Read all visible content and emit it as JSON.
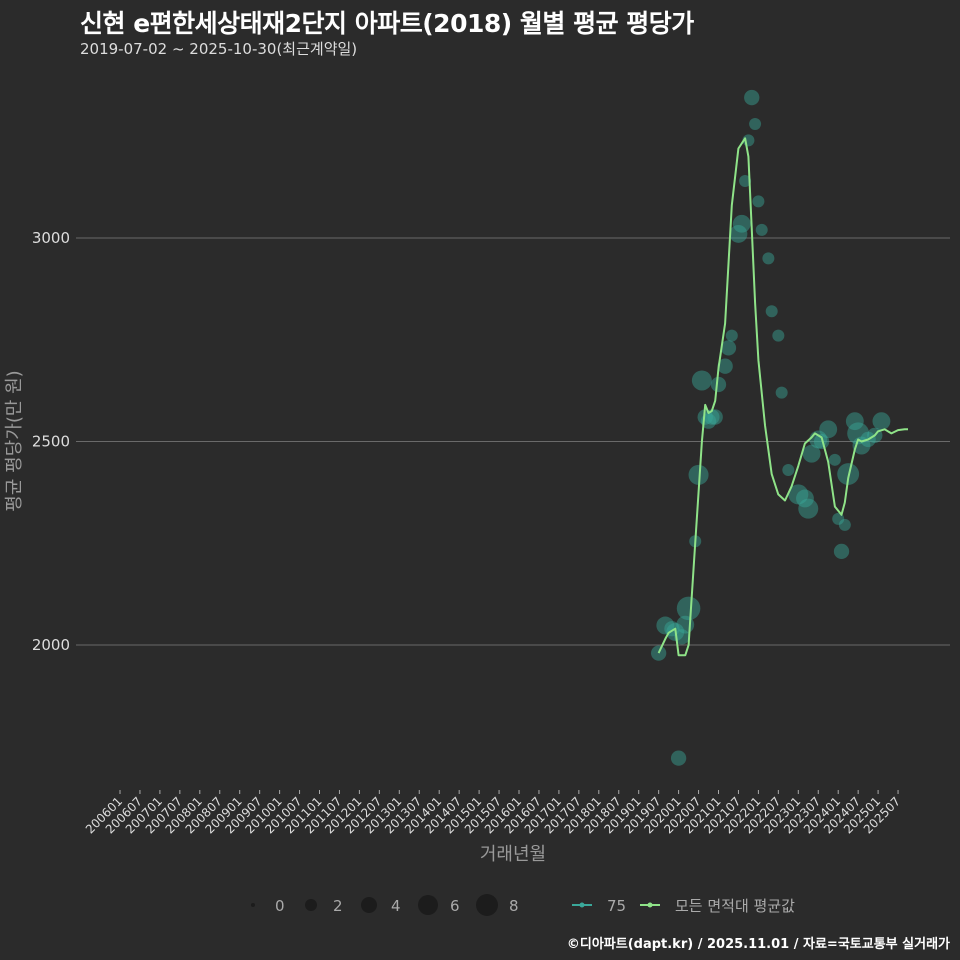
{
  "header": {
    "title": "신현 e편한세상태재2단지 아파트(2018) 월별 평균 평당가",
    "subtitle": "2019-07-02 ~ 2025-10-30(최근계약일)"
  },
  "caption": "©디아파트(dapt.kr) / 2025.11.01 / 자료=국토교통부 실거래가",
  "colors": {
    "background": "#2b2b2b",
    "grid": "#6a6a6a",
    "series_75": "#3aa89a",
    "series_avg": "#8fe388"
  },
  "chart_data": {
    "type": "line",
    "title": "신현 e편한세상태재2단지 아파트(2018) 월별 평균 평당가",
    "subtitle": "2019-07-02 ~ 2025-10-30(최근계약일)",
    "xlabel": "거래년월",
    "ylabel": "평균 평당가(만 원)",
    "ylim": [
      1650,
      3400
    ],
    "yticks": [
      2000,
      2500,
      3000
    ],
    "grid": true,
    "xtick_labels": [
      "200601",
      "200607",
      "200701",
      "200707",
      "200801",
      "200807",
      "200901",
      "200907",
      "201001",
      "201007",
      "201101",
      "201107",
      "201201",
      "201207",
      "201301",
      "201307",
      "201401",
      "201407",
      "201501",
      "201507",
      "201601",
      "201607",
      "201701",
      "201707",
      "201801",
      "201807",
      "201901",
      "201907",
      "202001",
      "202007",
      "202101",
      "202107",
      "202201",
      "202207",
      "202301",
      "202307",
      "202401",
      "202407",
      "202501",
      "202507"
    ],
    "legend": {
      "size_title": "",
      "size_entries": [
        "0",
        "2",
        "4",
        "6",
        "8"
      ],
      "line_entries": [
        "75",
        "모든 면적대 평균값"
      ],
      "position": "bottom"
    },
    "series": [
      {
        "name": "모든 면적대 평균값",
        "type": "line",
        "x": [
          "201907",
          "201909",
          "201910",
          "201912",
          "202001",
          "202003",
          "202004",
          "202006",
          "202008",
          "202009",
          "202010",
          "202011",
          "202012",
          "202101",
          "202103",
          "202105",
          "202107",
          "202109",
          "202110",
          "202111",
          "202112",
          "202201",
          "202203",
          "202205",
          "202207",
          "202209",
          "202211",
          "202301",
          "202303",
          "202305",
          "202306",
          "202308",
          "202310",
          "202312",
          "202402",
          "202403",
          "202404",
          "202406",
          "202407",
          "202408",
          "202410",
          "202412",
          "202501",
          "202503",
          "202505",
          "202507",
          "202509",
          "202510"
        ],
        "values": [
          1980,
          2015,
          2030,
          2040,
          1975,
          1975,
          2000,
          2250,
          2500,
          2590,
          2570,
          2575,
          2600,
          2680,
          2790,
          3080,
          3220,
          3245,
          3200,
          3020,
          2840,
          2700,
          2540,
          2420,
          2370,
          2355,
          2390,
          2440,
          2495,
          2510,
          2520,
          2510,
          2450,
          2340,
          2320,
          2350,
          2410,
          2480,
          2505,
          2500,
          2505,
          2515,
          2525,
          2530,
          2520,
          2528,
          2530,
          2530
        ]
      },
      {
        "name": "75",
        "type": "scatter",
        "points": [
          {
            "x": "201907",
            "y": 1980,
            "n": 2
          },
          {
            "x": "201909",
            "y": 2048,
            "n": 3
          },
          {
            "x": "201911",
            "y": 2040,
            "n": 2
          },
          {
            "x": "201912",
            "y": 2032,
            "n": 3
          },
          {
            "x": "202001",
            "y": 1722,
            "n": 2
          },
          {
            "x": "202002",
            "y": 2020,
            "n": 2
          },
          {
            "x": "202003",
            "y": 2050,
            "n": 3
          },
          {
            "x": "202004",
            "y": 2090,
            "n": 6
          },
          {
            "x": "202006",
            "y": 2255,
            "n": 1
          },
          {
            "x": "202007",
            "y": 2418,
            "n": 4
          },
          {
            "x": "202008",
            "y": 2650,
            "n": 4
          },
          {
            "x": "202009",
            "y": 2560,
            "n": 2
          },
          {
            "x": "202010",
            "y": 2550,
            "n": 2
          },
          {
            "x": "202011",
            "y": 2560,
            "n": 2
          },
          {
            "x": "202012",
            "y": 2560,
            "n": 2
          },
          {
            "x": "202101",
            "y": 2640,
            "n": 2
          },
          {
            "x": "202103",
            "y": 2685,
            "n": 2
          },
          {
            "x": "202104",
            "y": 2730,
            "n": 2
          },
          {
            "x": "202105",
            "y": 2760,
            "n": 1
          },
          {
            "x": "202107",
            "y": 3010,
            "n": 3
          },
          {
            "x": "202108",
            "y": 3035,
            "n": 3
          },
          {
            "x": "202109",
            "y": 3140,
            "n": 1
          },
          {
            "x": "202110",
            "y": 3240,
            "n": 1
          },
          {
            "x": "202111",
            "y": 3345,
            "n": 2
          },
          {
            "x": "202112",
            "y": 3280,
            "n": 1
          },
          {
            "x": "202201",
            "y": 3090,
            "n": 1
          },
          {
            "x": "202202",
            "y": 3020,
            "n": 1
          },
          {
            "x": "202204",
            "y": 2950,
            "n": 1
          },
          {
            "x": "202205",
            "y": 2820,
            "n": 1
          },
          {
            "x": "202207",
            "y": 2760,
            "n": 1
          },
          {
            "x": "202208",
            "y": 2620,
            "n": 1
          },
          {
            "x": "202210",
            "y": 2430,
            "n": 1
          },
          {
            "x": "202301",
            "y": 2370,
            "n": 4
          },
          {
            "x": "202303",
            "y": 2360,
            "n": 3
          },
          {
            "x": "202304",
            "y": 2335,
            "n": 4
          },
          {
            "x": "202305",
            "y": 2470,
            "n": 3
          },
          {
            "x": "202307",
            "y": 2505,
            "n": 3
          },
          {
            "x": "202308",
            "y": 2500,
            "n": 2
          },
          {
            "x": "202310",
            "y": 2530,
            "n": 3
          },
          {
            "x": "202312",
            "y": 2455,
            "n": 1
          },
          {
            "x": "202401",
            "y": 2310,
            "n": 1
          },
          {
            "x": "202402",
            "y": 2230,
            "n": 2
          },
          {
            "x": "202403",
            "y": 2295,
            "n": 1
          },
          {
            "x": "202404",
            "y": 2420,
            "n": 5
          },
          {
            "x": "202406",
            "y": 2550,
            "n": 3
          },
          {
            "x": "202407",
            "y": 2520,
            "n": 5
          },
          {
            "x": "202408",
            "y": 2490,
            "n": 3
          },
          {
            "x": "202410",
            "y": 2505,
            "n": 2
          },
          {
            "x": "202412",
            "y": 2515,
            "n": 2
          },
          {
            "x": "202502",
            "y": 2550,
            "n": 3
          }
        ]
      }
    ]
  }
}
